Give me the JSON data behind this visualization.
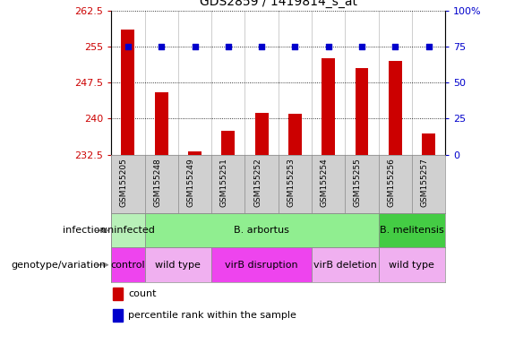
{
  "title": "GDS2859 / 1419814_s_at",
  "samples": [
    "GSM155205",
    "GSM155248",
    "GSM155249",
    "GSM155251",
    "GSM155252",
    "GSM155253",
    "GSM155254",
    "GSM155255",
    "GSM155256",
    "GSM155257"
  ],
  "counts": [
    258.5,
    245.5,
    233.2,
    237.5,
    241.2,
    241.0,
    252.5,
    250.5,
    252.0,
    237.0
  ],
  "percentile_ranks": [
    75,
    75,
    75,
    75,
    75,
    75,
    75,
    75,
    75,
    75
  ],
  "ylim_left": [
    232.5,
    262.5
  ],
  "ylim_right": [
    0,
    100
  ],
  "yticks_left": [
    232.5,
    240.0,
    247.5,
    255.0,
    262.5
  ],
  "yticks_right": [
    0,
    25,
    50,
    75,
    100
  ],
  "bar_color": "#cc0000",
  "dot_color": "#0000cc",
  "infection_groups": [
    {
      "label": "uninfected",
      "start": 0,
      "end": 1,
      "color": "#b8f0b8"
    },
    {
      "label": "B. arbortus",
      "start": 1,
      "end": 8,
      "color": "#90ee90"
    },
    {
      "label": "B. melitensis",
      "start": 8,
      "end": 10,
      "color": "#44cc44"
    }
  ],
  "genotype_groups": [
    {
      "label": "control",
      "start": 0,
      "end": 1,
      "color": "#ee44ee"
    },
    {
      "label": "wild type",
      "start": 1,
      "end": 3,
      "color": "#f0b0f0"
    },
    {
      "label": "virB disruption",
      "start": 3,
      "end": 6,
      "color": "#ee44ee"
    },
    {
      "label": "virB deletion",
      "start": 6,
      "end": 8,
      "color": "#f0b0f0"
    },
    {
      "label": "wild type",
      "start": 8,
      "end": 10,
      "color": "#f0b0f0"
    }
  ],
  "bg_color": "#ffffff",
  "tick_label_color_left": "#cc0000",
  "tick_label_color_right": "#0000cc",
  "label_infection": "infection",
  "label_genotype": "genotype/variation",
  "legend_count": "count",
  "legend_pct": "percentile rank within the sample",
  "xticklabel_bg": "#d0d0d0"
}
